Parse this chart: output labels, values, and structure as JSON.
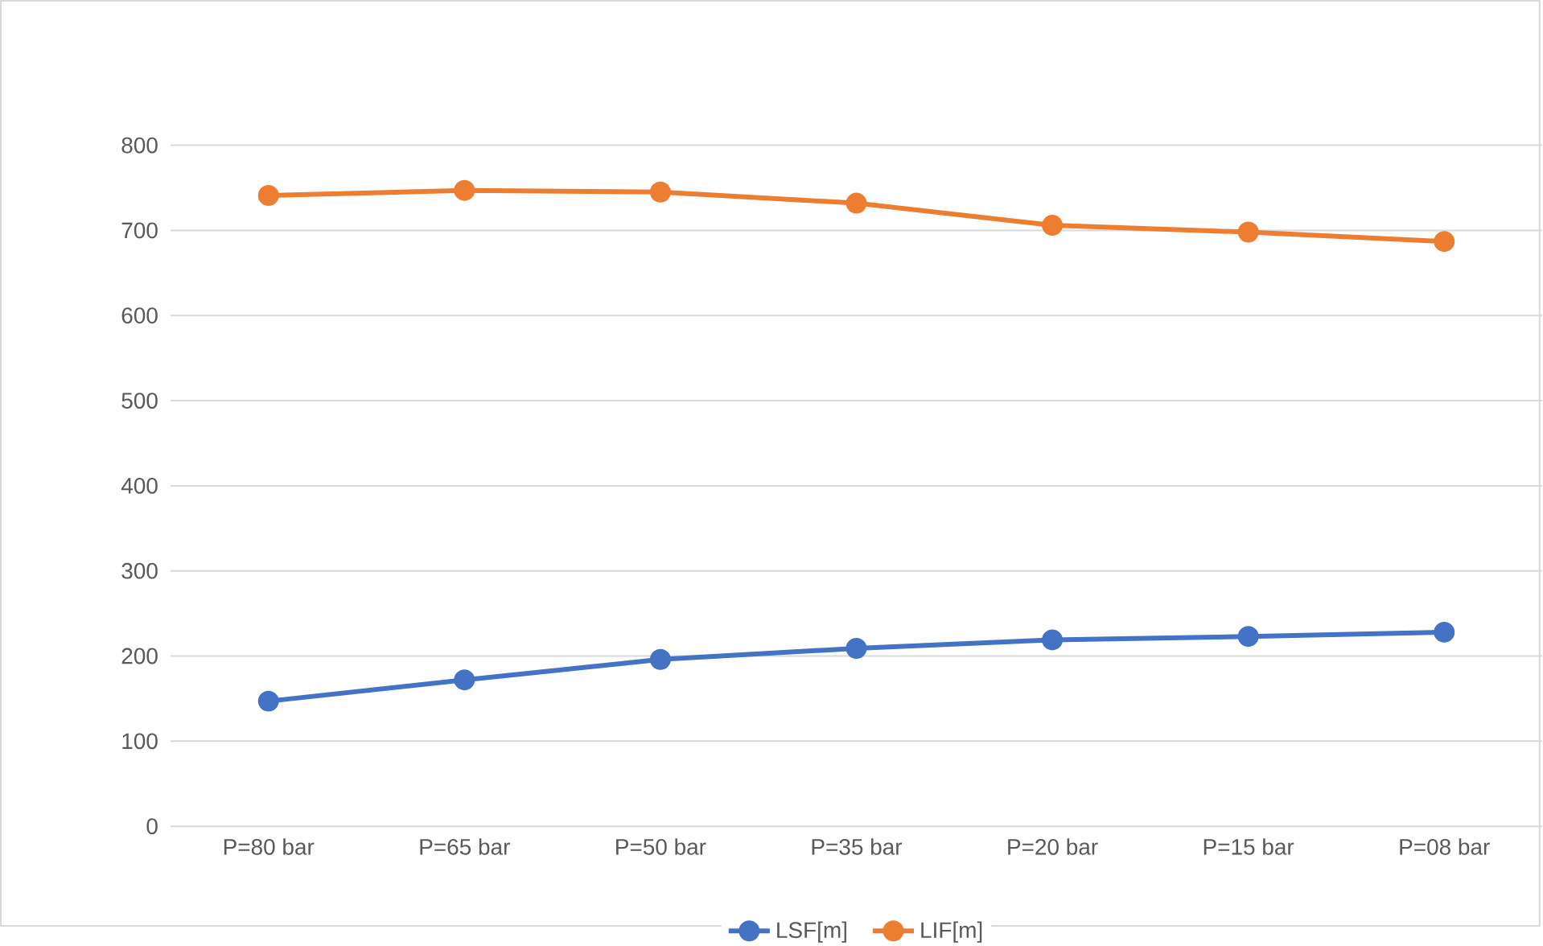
{
  "chart_data": {
    "type": "line",
    "categories": [
      "P=80 bar",
      "P=65 bar",
      "P=50 bar",
      "P=35 bar",
      "P=20 bar",
      "P=15 bar",
      "P=08 bar"
    ],
    "series": [
      {
        "name": "LSF[m]",
        "color": "#4472c4",
        "values": [
          147,
          172,
          196,
          209,
          219,
          223,
          228
        ]
      },
      {
        "name": "LIF[m]",
        "color": "#ed7d31",
        "values": [
          741,
          747,
          745,
          732,
          706,
          698,
          687
        ]
      }
    ],
    "ylim": [
      0,
      800
    ],
    "yticks": [
      0,
      100,
      200,
      300,
      400,
      500,
      600,
      700,
      800
    ],
    "grid": "y",
    "legend": "bottom",
    "marker": "circle",
    "line_style": "solid"
  }
}
